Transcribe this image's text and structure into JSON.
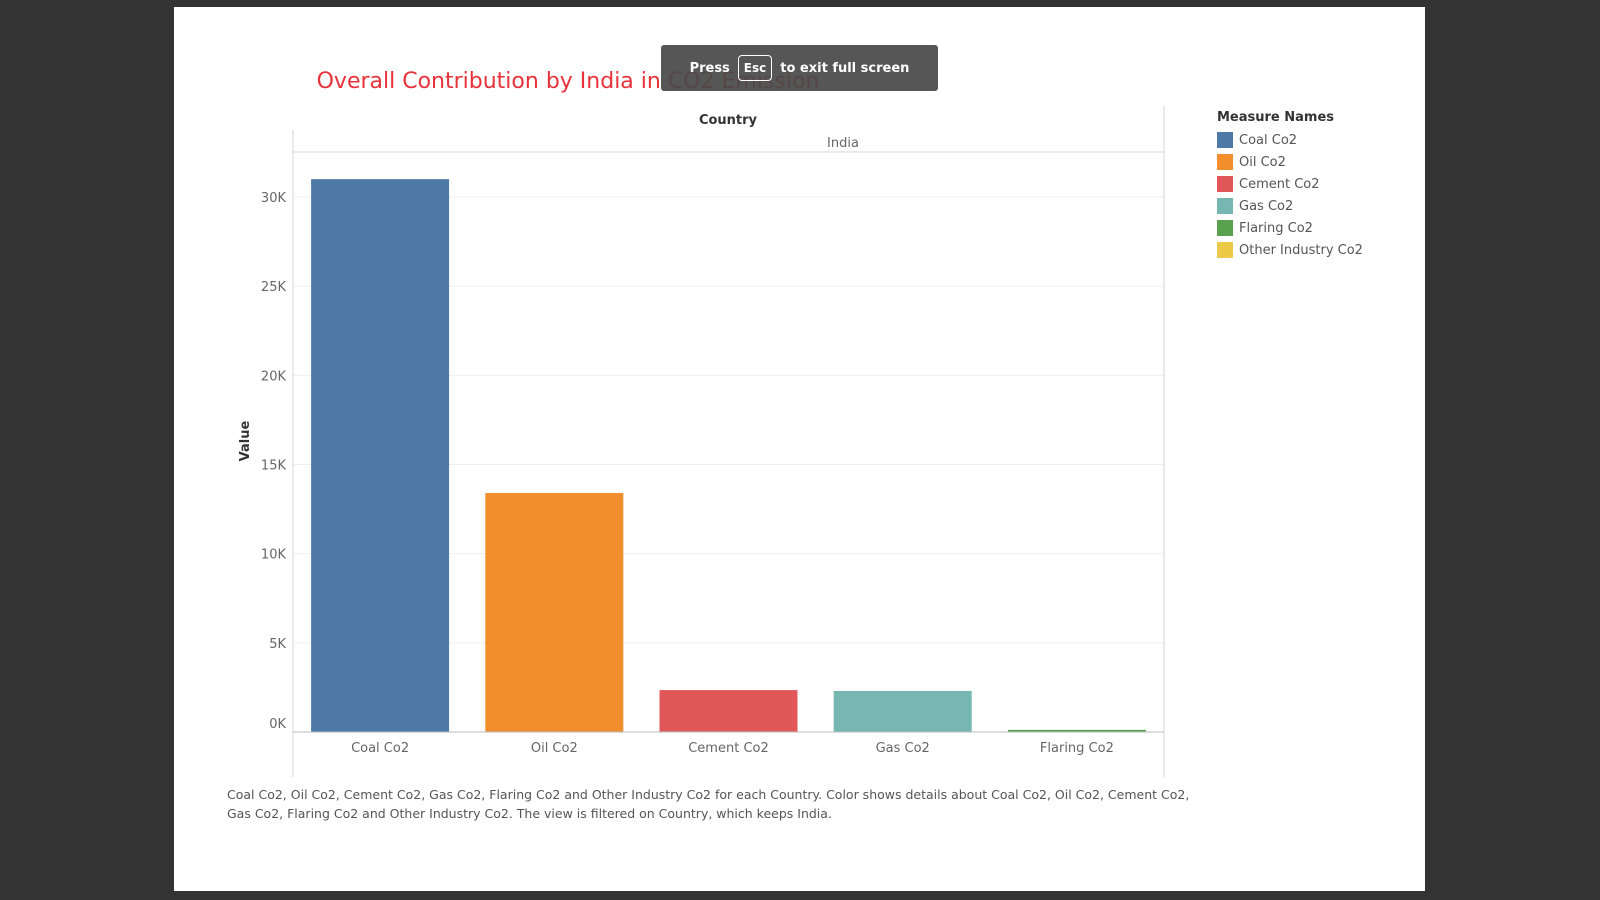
{
  "fullscreen_hint": {
    "press": "Press",
    "key": "Esc",
    "message": "to exit full screen"
  },
  "chart_data": {
    "type": "bar",
    "title": "Overall Contribution by India in CO2 Emission",
    "column_header": "Country",
    "facet": "India",
    "ylabel": "Value",
    "xlabel": "",
    "ylim": [
      0,
      32500
    ],
    "yticks": [
      0,
      5000,
      10000,
      15000,
      20000,
      25000,
      30000
    ],
    "ytick_labels": [
      "0K",
      "5K",
      "10K",
      "15K",
      "20K",
      "25K",
      "30K"
    ],
    "categories": [
      "Coal Co2",
      "Oil Co2",
      "Cement Co2",
      "Gas Co2",
      "Flaring Co2"
    ],
    "values": [
      31000,
      13400,
      2350,
      2300,
      120
    ],
    "colors": [
      "#4e79a7",
      "#f28e2b",
      "#e15759",
      "#76b7b2",
      "#59a14f"
    ],
    "grid": true,
    "legend_position": "right"
  },
  "legend": {
    "title": "Measure Names",
    "items": [
      {
        "label": "Coal Co2",
        "color": "#4e79a7"
      },
      {
        "label": "Oil Co2",
        "color": "#f28e2b"
      },
      {
        "label": "Cement Co2",
        "color": "#e15759"
      },
      {
        "label": "Gas Co2",
        "color": "#76b7b2"
      },
      {
        "label": "Flaring Co2",
        "color": "#59a14f"
      },
      {
        "label": "Other Industry Co2",
        "color": "#edc948"
      }
    ]
  },
  "caption": "Coal Co2, Oil Co2, Cement Co2, Gas Co2, Flaring Co2 and Other Industry Co2 for each Country.  Color shows details about Coal Co2, Oil Co2, Cement Co2, Gas Co2, Flaring Co2 and Other Industry Co2. The view is filtered on Country, which keeps India."
}
